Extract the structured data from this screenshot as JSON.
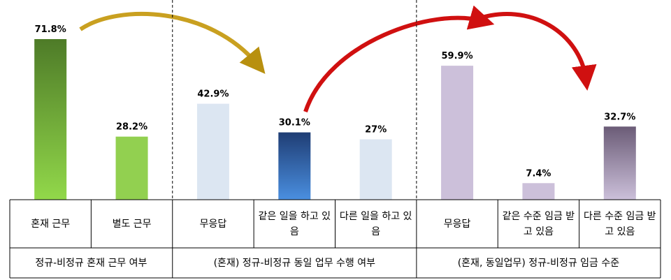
{
  "chart_data": {
    "type": "bar",
    "categories": [
      "혼재 근무",
      "별도 근무",
      "무응답",
      "같은 일을 하고 있음",
      "다른 일을 하고 있음",
      "무응답",
      "같은 수준 임금 받고 있음",
      "다른 수준 임금 받고 있음"
    ],
    "values": [
      71.8,
      28.2,
      42.9,
      30.1,
      27,
      59.9,
      7.4,
      32.7
    ],
    "value_labels": [
      "71.8%",
      "28.2%",
      "42.9%",
      "30.1%",
      "27%",
      "59.9%",
      "7.4%",
      "32.7%"
    ],
    "colors": [
      [
        "#4e7b28",
        "#92d84a"
      ],
      [
        "#92d050",
        "#92d050"
      ],
      [
        "#dce6f2",
        "#dce6f2"
      ],
      [
        "#1f3d74",
        "#4a8fe0"
      ],
      [
        "#dce6f2",
        "#dce6f2"
      ],
      [
        "#ccc0da",
        "#ccc0da"
      ],
      [
        "#ccc0da",
        "#ccc0da"
      ],
      [
        "#6b5c77",
        "#ccc0da"
      ]
    ],
    "groups": [
      {
        "label": "정규-비정규 혼재 근무 여부",
        "size": 2
      },
      {
        "label": "(혼재) 정규-비정규 동일 업무 수행 여부",
        "size": 3
      },
      {
        "label": "(혼재, 동일업무) 정규-비정규 임금 수준",
        "size": 3
      }
    ]
  }
}
